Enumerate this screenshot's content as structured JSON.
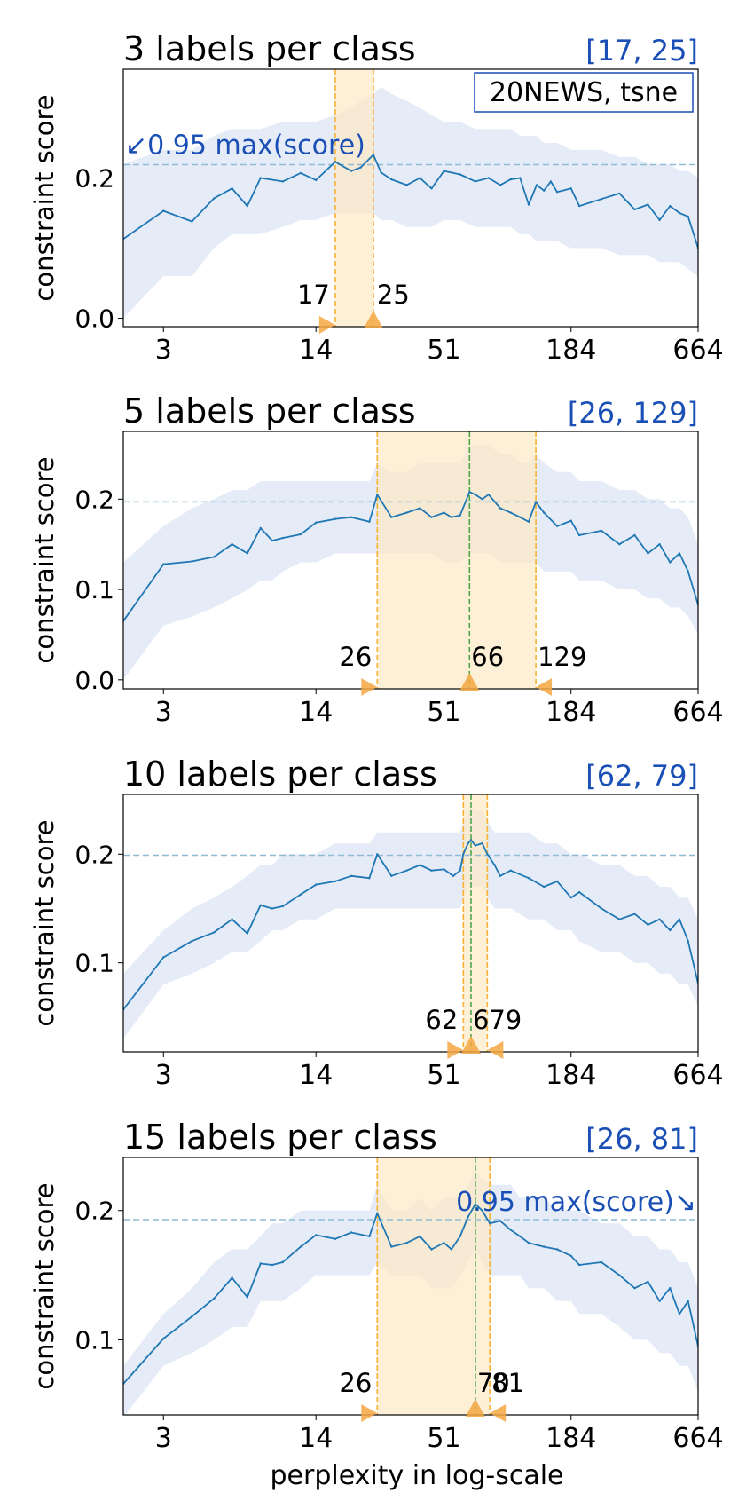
{
  "figure": {
    "xlabel": "perplexity in log-scale",
    "ylabel": "constraint score",
    "dataset_label": "20NEWS, tsne",
    "colors": {
      "line": "#1f77b4",
      "band": "#dce6f5",
      "range_fill": "#fdeac5",
      "range_edge": "#f5b133",
      "marker": "#f5a742",
      "best_line": "#4ca64c",
      "threshold_line": "#8fbcd4",
      "annotation": "#1a4fb5"
    }
  },
  "chart_data": [
    {
      "type": "line",
      "title": "3 labels per class",
      "range_label": "[17, 25]",
      "threshold_note": "↙0.95 max(score)",
      "x_scale": "log",
      "xlim": [
        2,
        664
      ],
      "ylim": [
        -0.012,
        0.355
      ],
      "yticks": [
        0.0,
        0.2
      ],
      "ytick_labels": [
        "0.0",
        "0.2"
      ],
      "xticks": [
        3,
        14,
        51,
        184,
        664
      ],
      "xtick_labels": [
        "3",
        "14",
        "51",
        "184",
        "664"
      ],
      "threshold": 0.219,
      "range": [
        17,
        25
      ],
      "best": null,
      "marker_labels": [
        "17",
        "25"
      ],
      "series": [
        {
          "x": [
            2,
            3,
            4,
            5,
            6,
            7,
            8,
            10,
            12,
            14,
            17,
            20,
            22,
            25,
            27,
            30,
            35,
            40,
            45,
            51,
            60,
            70,
            80,
            90,
            100,
            110,
            120,
            130,
            140,
            150,
            160,
            184,
            200,
            250,
            300,
            350,
            400,
            450,
            500,
            550,
            600,
            664
          ],
          "y": [
            0.113,
            0.153,
            0.138,
            0.171,
            0.185,
            0.16,
            0.2,
            0.195,
            0.207,
            0.197,
            0.223,
            0.21,
            0.215,
            0.233,
            0.208,
            0.198,
            0.19,
            0.2,
            0.185,
            0.21,
            0.205,
            0.195,
            0.2,
            0.19,
            0.198,
            0.2,
            0.162,
            0.19,
            0.182,
            0.195,
            0.18,
            0.185,
            0.16,
            0.17,
            0.178,
            0.155,
            0.162,
            0.14,
            0.16,
            0.15,
            0.145,
            0.1
          ],
          "lower": [
            0.0,
            0.06,
            0.06,
            0.1,
            0.12,
            0.12,
            0.12,
            0.13,
            0.14,
            0.14,
            0.15,
            0.15,
            0.15,
            0.15,
            0.14,
            0.14,
            0.13,
            0.13,
            0.13,
            0.14,
            0.14,
            0.13,
            0.13,
            0.13,
            0.13,
            0.12,
            0.12,
            0.11,
            0.11,
            0.11,
            0.11,
            0.1,
            0.1,
            0.1,
            0.09,
            0.09,
            0.09,
            0.08,
            0.08,
            0.08,
            0.07,
            0.06
          ],
          "upper": [
            0.22,
            0.24,
            0.24,
            0.26,
            0.27,
            0.27,
            0.27,
            0.28,
            0.28,
            0.28,
            0.29,
            0.3,
            0.31,
            0.32,
            0.33,
            0.32,
            0.31,
            0.3,
            0.29,
            0.28,
            0.28,
            0.27,
            0.27,
            0.27,
            0.27,
            0.26,
            0.26,
            0.26,
            0.25,
            0.25,
            0.25,
            0.24,
            0.24,
            0.24,
            0.23,
            0.23,
            0.22,
            0.22,
            0.22,
            0.21,
            0.21,
            0.2
          ]
        }
      ]
    },
    {
      "type": "line",
      "title": "5 labels per class",
      "range_label": "[26, 129]",
      "threshold_note": "",
      "x_scale": "log",
      "xlim": [
        2,
        664
      ],
      "ylim": [
        -0.01,
        0.275
      ],
      "yticks": [
        0.0,
        0.1,
        0.2
      ],
      "ytick_labels": [
        "0.0",
        "0.1",
        "0.2"
      ],
      "xticks": [
        3,
        14,
        51,
        184,
        664
      ],
      "xtick_labels": [
        "3",
        "14",
        "51",
        "184",
        "664"
      ],
      "threshold": 0.197,
      "range": [
        26,
        129
      ],
      "best": 66,
      "marker_labels": [
        "26",
        "66",
        "129"
      ],
      "series": [
        {
          "x": [
            2,
            3,
            4,
            5,
            6,
            7,
            8,
            9,
            10,
            12,
            14,
            17,
            20,
            24,
            26,
            30,
            35,
            40,
            45,
            51,
            55,
            60,
            66,
            70,
            75,
            80,
            90,
            100,
            110,
            120,
            129,
            140,
            160,
            184,
            200,
            250,
            300,
            350,
            400,
            450,
            500,
            550,
            600,
            664
          ],
          "y": [
            0.065,
            0.128,
            0.131,
            0.136,
            0.15,
            0.14,
            0.168,
            0.154,
            0.157,
            0.161,
            0.174,
            0.178,
            0.18,
            0.175,
            0.205,
            0.18,
            0.185,
            0.19,
            0.18,
            0.185,
            0.18,
            0.182,
            0.208,
            0.205,
            0.2,
            0.205,
            0.19,
            0.185,
            0.18,
            0.175,
            0.197,
            0.185,
            0.17,
            0.176,
            0.16,
            0.165,
            0.15,
            0.16,
            0.14,
            0.15,
            0.13,
            0.14,
            0.12,
            0.083
          ],
          "lower": [
            0.0,
            0.06,
            0.07,
            0.08,
            0.09,
            0.1,
            0.11,
            0.11,
            0.12,
            0.13,
            0.13,
            0.14,
            0.14,
            0.14,
            0.14,
            0.14,
            0.14,
            0.14,
            0.14,
            0.13,
            0.13,
            0.13,
            0.14,
            0.14,
            0.14,
            0.14,
            0.13,
            0.13,
            0.13,
            0.13,
            0.13,
            0.12,
            0.12,
            0.12,
            0.11,
            0.11,
            0.1,
            0.1,
            0.09,
            0.09,
            0.08,
            0.08,
            0.07,
            0.05
          ],
          "upper": [
            0.13,
            0.17,
            0.19,
            0.2,
            0.21,
            0.21,
            0.22,
            0.22,
            0.22,
            0.22,
            0.22,
            0.22,
            0.22,
            0.22,
            0.24,
            0.23,
            0.23,
            0.24,
            0.24,
            0.24,
            0.24,
            0.24,
            0.26,
            0.26,
            0.26,
            0.26,
            0.25,
            0.25,
            0.24,
            0.24,
            0.25,
            0.24,
            0.23,
            0.23,
            0.22,
            0.22,
            0.21,
            0.21,
            0.2,
            0.2,
            0.19,
            0.19,
            0.18,
            0.15
          ]
        }
      ]
    },
    {
      "type": "line",
      "title": "10 labels per class",
      "range_label": "[62, 79]",
      "threshold_note": "",
      "x_scale": "log",
      "xlim": [
        2,
        664
      ],
      "ylim": [
        0.018,
        0.255
      ],
      "yticks": [
        0.1,
        0.2
      ],
      "ytick_labels": [
        "0.1",
        "0.2"
      ],
      "xticks": [
        3,
        14,
        51,
        184,
        664
      ],
      "xtick_labels": [
        "3",
        "14",
        "51",
        "184",
        "664"
      ],
      "threshold": 0.199,
      "range": [
        62,
        79
      ],
      "best": 67,
      "marker_labels": [
        "62",
        "67",
        "79"
      ],
      "series": [
        {
          "x": [
            2,
            3,
            4,
            5,
            6,
            7,
            8,
            9,
            10,
            12,
            14,
            17,
            20,
            24,
            26,
            30,
            35,
            40,
            45,
            51,
            56,
            60,
            62,
            65,
            67,
            70,
            75,
            79,
            85,
            90,
            100,
            120,
            140,
            160,
            184,
            200,
            250,
            300,
            350,
            400,
            450,
            500,
            550,
            600,
            664
          ],
          "y": [
            0.057,
            0.105,
            0.12,
            0.128,
            0.14,
            0.127,
            0.153,
            0.15,
            0.152,
            0.163,
            0.172,
            0.175,
            0.18,
            0.178,
            0.2,
            0.18,
            0.185,
            0.19,
            0.185,
            0.186,
            0.18,
            0.185,
            0.2,
            0.21,
            0.213,
            0.208,
            0.21,
            0.2,
            0.19,
            0.18,
            0.185,
            0.178,
            0.17,
            0.175,
            0.16,
            0.165,
            0.15,
            0.14,
            0.145,
            0.135,
            0.14,
            0.13,
            0.14,
            0.12,
            0.081
          ],
          "lower": [
            0.03,
            0.08,
            0.09,
            0.1,
            0.11,
            0.11,
            0.12,
            0.13,
            0.13,
            0.14,
            0.14,
            0.15,
            0.15,
            0.15,
            0.15,
            0.15,
            0.15,
            0.15,
            0.15,
            0.15,
            0.15,
            0.15,
            0.16,
            0.17,
            0.17,
            0.17,
            0.17,
            0.16,
            0.15,
            0.15,
            0.15,
            0.14,
            0.14,
            0.13,
            0.13,
            0.12,
            0.11,
            0.11,
            0.1,
            0.1,
            0.09,
            0.09,
            0.08,
            0.08,
            0.06
          ],
          "upper": [
            0.09,
            0.13,
            0.15,
            0.16,
            0.17,
            0.18,
            0.19,
            0.19,
            0.2,
            0.2,
            0.2,
            0.21,
            0.21,
            0.21,
            0.22,
            0.22,
            0.22,
            0.22,
            0.22,
            0.22,
            0.22,
            0.22,
            0.23,
            0.24,
            0.245,
            0.24,
            0.24,
            0.23,
            0.22,
            0.22,
            0.22,
            0.22,
            0.21,
            0.21,
            0.2,
            0.2,
            0.19,
            0.19,
            0.18,
            0.18,
            0.17,
            0.17,
            0.16,
            0.16,
            0.14
          ]
        }
      ]
    },
    {
      "type": "line",
      "title": "15 labels per class",
      "range_label": "[26, 81]",
      "threshold_note": "0.95 max(score)↘",
      "x_scale": "log",
      "xlim": [
        2,
        664
      ],
      "ylim": [
        0.042,
        0.241
      ],
      "yticks": [
        0.1,
        0.2
      ],
      "ytick_labels": [
        "0.1",
        "0.2"
      ],
      "xticks": [
        3,
        14,
        51,
        184,
        664
      ],
      "xtick_labels": [
        "3",
        "14",
        "51",
        "184",
        "664"
      ],
      "threshold": 0.193,
      "range": [
        26,
        81
      ],
      "best": 70,
      "marker_labels": [
        "26",
        "70",
        "81"
      ],
      "series": [
        {
          "x": [
            2,
            3,
            4,
            5,
            6,
            7,
            8,
            9,
            10,
            12,
            14,
            17,
            20,
            24,
            26,
            30,
            35,
            40,
            45,
            51,
            55,
            60,
            65,
            70,
            75,
            81,
            90,
            100,
            110,
            120,
            140,
            160,
            184,
            200,
            250,
            300,
            350,
            400,
            450,
            500,
            550,
            600,
            664
          ],
          "y": [
            0.066,
            0.101,
            0.118,
            0.132,
            0.148,
            0.133,
            0.159,
            0.158,
            0.16,
            0.172,
            0.181,
            0.178,
            0.183,
            0.18,
            0.198,
            0.172,
            0.175,
            0.18,
            0.17,
            0.175,
            0.17,
            0.18,
            0.195,
            0.205,
            0.2,
            0.19,
            0.192,
            0.185,
            0.18,
            0.175,
            0.172,
            0.17,
            0.165,
            0.158,
            0.16,
            0.15,
            0.14,
            0.145,
            0.13,
            0.14,
            0.12,
            0.13,
            0.095
          ],
          "lower": [
            0.04,
            0.08,
            0.09,
            0.1,
            0.11,
            0.11,
            0.13,
            0.13,
            0.13,
            0.14,
            0.15,
            0.15,
            0.15,
            0.15,
            0.16,
            0.15,
            0.15,
            0.15,
            0.14,
            0.14,
            0.14,
            0.15,
            0.16,
            0.17,
            0.16,
            0.15,
            0.15,
            0.15,
            0.15,
            0.14,
            0.14,
            0.13,
            0.13,
            0.12,
            0.12,
            0.11,
            0.1,
            0.1,
            0.09,
            0.09,
            0.08,
            0.08,
            0.06
          ],
          "upper": [
            0.08,
            0.12,
            0.14,
            0.16,
            0.17,
            0.17,
            0.18,
            0.19,
            0.19,
            0.2,
            0.2,
            0.2,
            0.2,
            0.2,
            0.22,
            0.2,
            0.2,
            0.21,
            0.2,
            0.21,
            0.21,
            0.21,
            0.22,
            0.23,
            0.225,
            0.22,
            0.22,
            0.22,
            0.21,
            0.21,
            0.21,
            0.2,
            0.2,
            0.2,
            0.19,
            0.19,
            0.18,
            0.18,
            0.17,
            0.17,
            0.16,
            0.16,
            0.14
          ]
        }
      ]
    }
  ]
}
